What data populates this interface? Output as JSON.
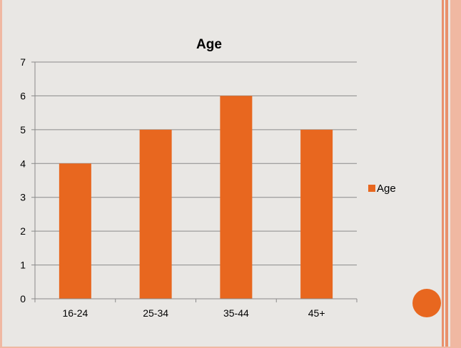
{
  "colors": {
    "bar": "#e8671f",
    "background": "#e9e7e4",
    "accent_light": "#f0b8a2",
    "accent_mid": "#e9906b",
    "grid": "#8a8a8a",
    "axis": "#8a8a8a",
    "text": "#000000"
  },
  "decorations": {
    "circle_icon": "orange-circle-icon"
  },
  "chart_data": {
    "type": "bar",
    "title": "Age",
    "categories": [
      "16-24",
      "25-34",
      "35-44",
      "45+"
    ],
    "series": [
      {
        "name": "Age",
        "values": [
          4,
          5,
          6,
          5
        ]
      }
    ],
    "ylim": [
      0,
      7
    ],
    "yticks": [
      "0",
      "1",
      "2",
      "3",
      "4",
      "5",
      "6",
      "7"
    ],
    "xlabel": "",
    "ylabel": "",
    "grid": true,
    "legend_position": "right"
  }
}
